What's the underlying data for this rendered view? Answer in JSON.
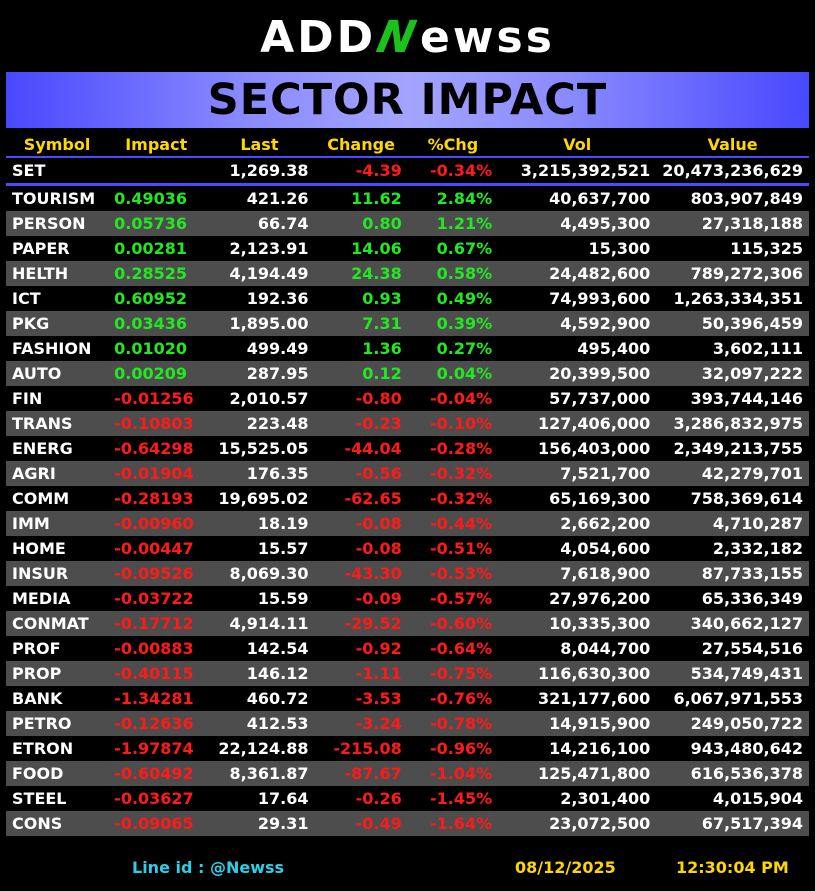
{
  "logo": {
    "pre": "ADD",
    "n": "N",
    "post": "ewss"
  },
  "banner": "SECTOR IMPACT",
  "columns": [
    "Symbol",
    "Impact",
    "Last",
    "Change",
    "%Chg",
    "Vol",
    "Value"
  ],
  "set_row": {
    "symbol": "SET",
    "impact": "",
    "last": "1,269.38",
    "change": "-4.39",
    "pct": "-0.34%",
    "vol": "3,215,392,521",
    "value": "20,473,236,629"
  },
  "rows": [
    {
      "symbol": "TOURISM",
      "impact": "0.49036",
      "last": "421.26",
      "change": "11.62",
      "pct": "2.84%",
      "vol": "40,637,700",
      "value": "803,907,849",
      "dir": "up"
    },
    {
      "symbol": "PERSON",
      "impact": "0.05736",
      "last": "66.74",
      "change": "0.80",
      "pct": "1.21%",
      "vol": "4,495,300",
      "value": "27,318,188",
      "dir": "up"
    },
    {
      "symbol": "PAPER",
      "impact": "0.00281",
      "last": "2,123.91",
      "change": "14.06",
      "pct": "0.67%",
      "vol": "15,300",
      "value": "115,325",
      "dir": "up"
    },
    {
      "symbol": "HELTH",
      "impact": "0.28525",
      "last": "4,194.49",
      "change": "24.38",
      "pct": "0.58%",
      "vol": "24,482,600",
      "value": "789,272,306",
      "dir": "up"
    },
    {
      "symbol": "ICT",
      "impact": "0.60952",
      "last": "192.36",
      "change": "0.93",
      "pct": "0.49%",
      "vol": "74,993,600",
      "value": "1,263,334,351",
      "dir": "up"
    },
    {
      "symbol": "PKG",
      "impact": "0.03436",
      "last": "1,895.00",
      "change": "7.31",
      "pct": "0.39%",
      "vol": "4,592,900",
      "value": "50,396,459",
      "dir": "up"
    },
    {
      "symbol": "FASHION",
      "impact": "0.01020",
      "last": "499.49",
      "change": "1.36",
      "pct": "0.27%",
      "vol": "495,400",
      "value": "3,602,111",
      "dir": "up"
    },
    {
      "symbol": "AUTO",
      "impact": "0.00209",
      "last": "287.95",
      "change": "0.12",
      "pct": "0.04%",
      "vol": "20,399,500",
      "value": "32,097,222",
      "dir": "up"
    },
    {
      "symbol": "FIN",
      "impact": "-0.01256",
      "last": "2,010.57",
      "change": "-0.80",
      "pct": "-0.04%",
      "vol": "57,737,000",
      "value": "393,744,146",
      "dir": "down"
    },
    {
      "symbol": "TRANS",
      "impact": "-0.10803",
      "last": "223.48",
      "change": "-0.23",
      "pct": "-0.10%",
      "vol": "127,406,000",
      "value": "3,286,832,975",
      "dir": "down"
    },
    {
      "symbol": "ENERG",
      "impact": "-0.64298",
      "last": "15,525.05",
      "change": "-44.04",
      "pct": "-0.28%",
      "vol": "156,403,000",
      "value": "2,349,213,755",
      "dir": "down"
    },
    {
      "symbol": "AGRI",
      "impact": "-0.01904",
      "last": "176.35",
      "change": "-0.56",
      "pct": "-0.32%",
      "vol": "7,521,700",
      "value": "42,279,701",
      "dir": "down"
    },
    {
      "symbol": "COMM",
      "impact": "-0.28193",
      "last": "19,695.02",
      "change": "-62.65",
      "pct": "-0.32%",
      "vol": "65,169,300",
      "value": "758,369,614",
      "dir": "down"
    },
    {
      "symbol": "IMM",
      "impact": "-0.00960",
      "last": "18.19",
      "change": "-0.08",
      "pct": "-0.44%",
      "vol": "2,662,200",
      "value": "4,710,287",
      "dir": "down"
    },
    {
      "symbol": "HOME",
      "impact": "-0.00447",
      "last": "15.57",
      "change": "-0.08",
      "pct": "-0.51%",
      "vol": "4,054,600",
      "value": "2,332,182",
      "dir": "down"
    },
    {
      "symbol": "INSUR",
      "impact": "-0.09526",
      "last": "8,069.30",
      "change": "-43.30",
      "pct": "-0.53%",
      "vol": "7,618,900",
      "value": "87,733,155",
      "dir": "down"
    },
    {
      "symbol": "MEDIA",
      "impact": "-0.03722",
      "last": "15.59",
      "change": "-0.09",
      "pct": "-0.57%",
      "vol": "27,976,200",
      "value": "65,336,349",
      "dir": "down"
    },
    {
      "symbol": "CONMAT",
      "impact": "-0.17712",
      "last": "4,914.11",
      "change": "-29.52",
      "pct": "-0.60%",
      "vol": "10,335,300",
      "value": "340,662,127",
      "dir": "down"
    },
    {
      "symbol": "PROF",
      "impact": "-0.00883",
      "last": "142.54",
      "change": "-0.92",
      "pct": "-0.64%",
      "vol": "8,044,700",
      "value": "27,554,516",
      "dir": "down"
    },
    {
      "symbol": "PROP",
      "impact": "-0.40115",
      "last": "146.12",
      "change": "-1.11",
      "pct": "-0.75%",
      "vol": "116,630,300",
      "value": "534,749,431",
      "dir": "down"
    },
    {
      "symbol": "BANK",
      "impact": "-1.34281",
      "last": "460.72",
      "change": "-3.53",
      "pct": "-0.76%",
      "vol": "321,177,600",
      "value": "6,067,971,553",
      "dir": "down"
    },
    {
      "symbol": "PETRO",
      "impact": "-0.12636",
      "last": "412.53",
      "change": "-3.24",
      "pct": "-0.78%",
      "vol": "14,915,900",
      "value": "249,050,722",
      "dir": "down"
    },
    {
      "symbol": "ETRON",
      "impact": "-1.97874",
      "last": "22,124.88",
      "change": "-215.08",
      "pct": "-0.96%",
      "vol": "14,216,100",
      "value": "943,480,642",
      "dir": "down"
    },
    {
      "symbol": "FOOD",
      "impact": "-0.60492",
      "last": "8,361.87",
      "change": "-87.67",
      "pct": "-1.04%",
      "vol": "125,471,800",
      "value": "616,536,378",
      "dir": "down"
    },
    {
      "symbol": "STEEL",
      "impact": "-0.03627",
      "last": "17.64",
      "change": "-0.26",
      "pct": "-1.45%",
      "vol": "2,301,400",
      "value": "4,015,904",
      "dir": "down"
    },
    {
      "symbol": "CONS",
      "impact": "-0.09065",
      "last": "29.31",
      "change": "-0.49",
      "pct": "-1.64%",
      "vol": "23,072,500",
      "value": "67,517,394",
      "dir": "down"
    }
  ],
  "footer": {
    "line_id": "Line id  : @Newss",
    "date": "08/12/2025",
    "time": "12:30:04 PM"
  },
  "colors": {
    "up": "#22e822",
    "down": "#ff1a1a",
    "header": "#ffd700",
    "accent": "#4a4aff"
  }
}
